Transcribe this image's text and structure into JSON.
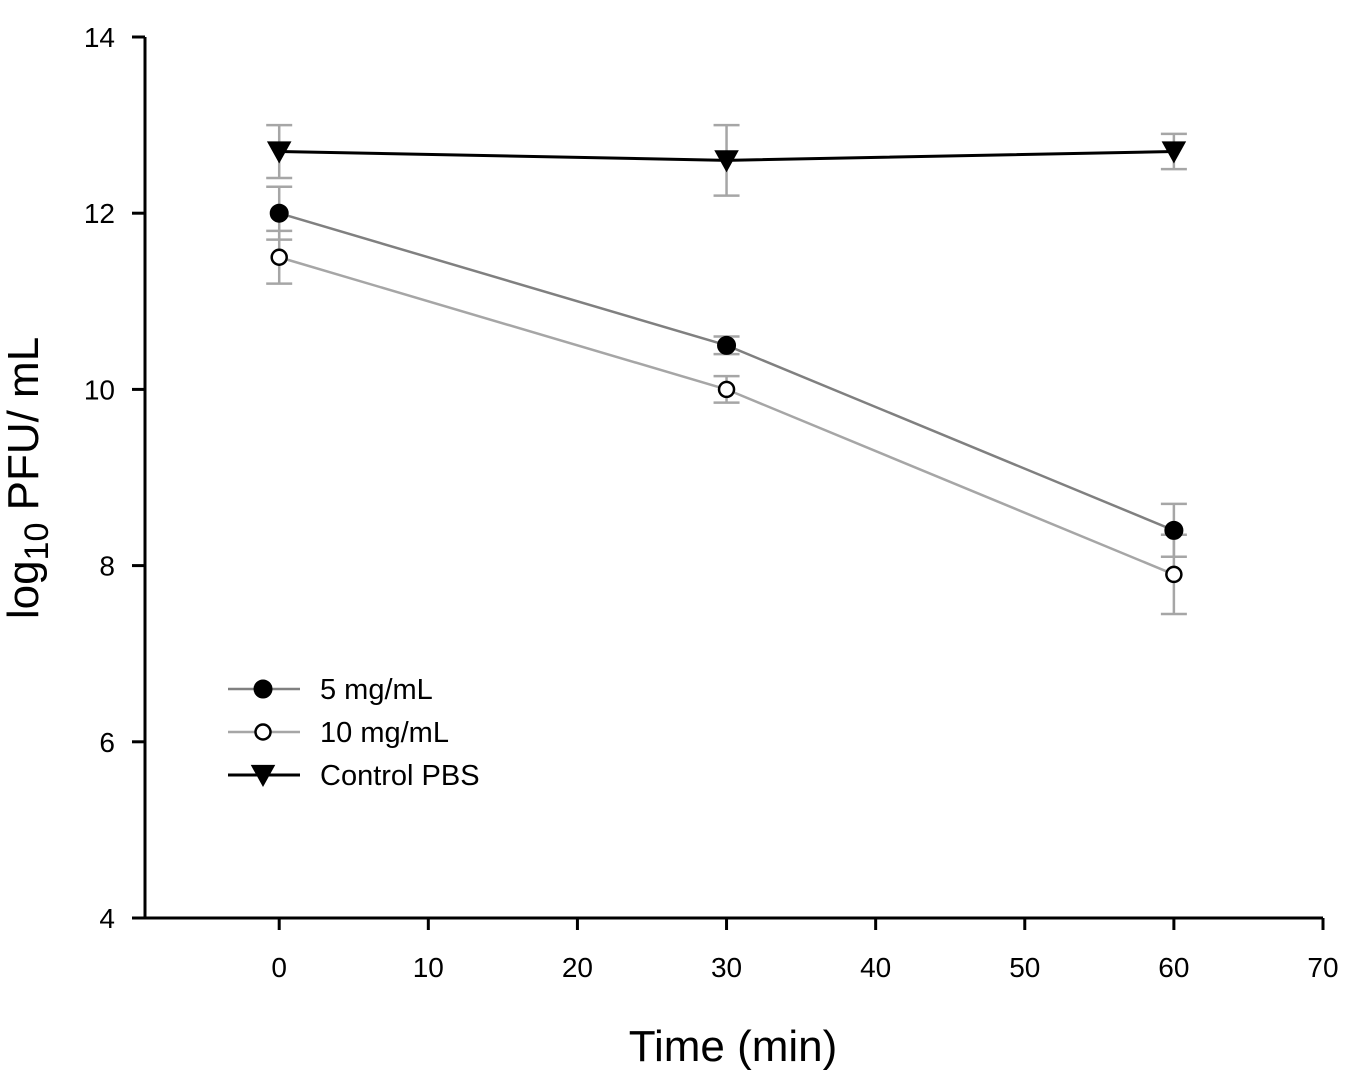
{
  "chart_data": {
    "type": "line",
    "title": "",
    "xlabel": "Time (min)",
    "ylabel": "log10 PFU/ mL",
    "ylabel_main": "log",
    "ylabel_sub": "10",
    "ylabel_rest": " PFU/ mL",
    "xlim": [
      -9,
      70
    ],
    "ylim": [
      4,
      14
    ],
    "xticks": [
      0,
      10,
      20,
      30,
      40,
      50,
      60,
      70
    ],
    "yticks": [
      4,
      6,
      8,
      10,
      12,
      14
    ],
    "xtick_labels": [
      "0",
      "10",
      "20",
      "30",
      "40",
      "50",
      "60",
      "70"
    ],
    "ytick_labels": [
      "4",
      "6",
      "8",
      "10",
      "12",
      "14"
    ],
    "grid": false,
    "legend_position": "bottom-left",
    "x": [
      0,
      30,
      60
    ],
    "series": [
      {
        "name": "5 mg/mL",
        "marker": "filled-circle",
        "line_color": "#808080",
        "marker_fill": "#000000",
        "values": [
          12.0,
          10.5,
          8.4
        ],
        "errors": [
          0.3,
          0.1,
          0.3
        ]
      },
      {
        "name": "10 mg/mL",
        "marker": "open-circle",
        "line_color": "#a6a6a6",
        "marker_fill": "#ffffff",
        "values": [
          11.5,
          10.0,
          7.9
        ],
        "errors": [
          0.3,
          0.15,
          0.45
        ]
      },
      {
        "name": "Control PBS",
        "marker": "filled-triangle-down",
        "line_color": "#000000",
        "marker_fill": "#000000",
        "values": [
          12.7,
          12.6,
          12.7
        ],
        "errors": [
          0.3,
          0.4,
          0.2
        ]
      }
    ],
    "error_bar_color": "#a6a6a6"
  }
}
